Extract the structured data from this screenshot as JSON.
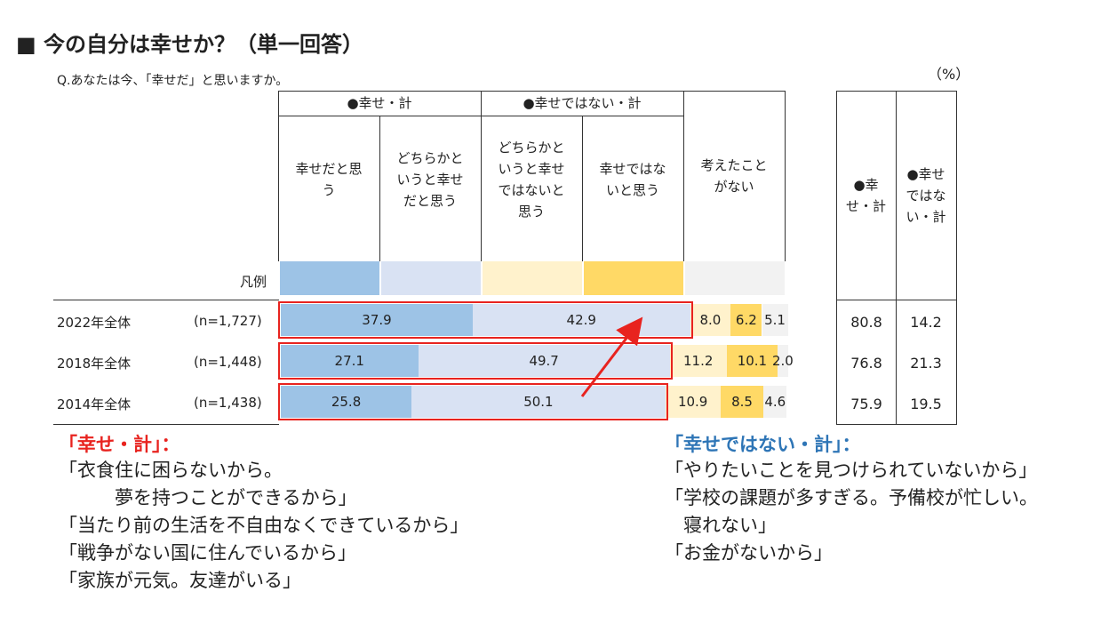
{
  "title": "■ 今の自分は幸せか？（単一回答）",
  "question": "Q.あなたは今、「幸せだ」と思いますか。",
  "unit": "（%）",
  "group_headers": [
    "●幸せ・計",
    "●幸せではない・計"
  ],
  "column_headers": [
    "幸せだと思\nう",
    "どちらかと\nいうと幸せ\nだと思う",
    "どちらかと\nいうと幸せ\nではないと\n思う",
    "幸せではな\nいと思う",
    "考えたこと\nがない"
  ],
  "total_headers": [
    "●幸\nせ・計",
    "●幸せ\nではな\nい・計"
  ],
  "legend_label": "凡例",
  "colors": {
    "c1": "#9dc3e6",
    "c2": "#d9e2f3",
    "c3": "#fff2cc",
    "c4": "#ffd966",
    "c5": "#f2f2f2",
    "highlight": "#e8231f",
    "happy_note": "#e8231f",
    "unhappy_note": "#2e75b6"
  },
  "chart_data": {
    "type": "bar",
    "stacked": true,
    "orientation": "horizontal",
    "unit": "%",
    "categories": [
      "2022年全体",
      "2018年全体",
      "2014年全体"
    ],
    "sample_sizes": [
      "(n=1,727)",
      "(n=1,448)",
      "(n=1,438)"
    ],
    "series": [
      {
        "name": "幸せだと思う",
        "values": [
          37.9,
          27.1,
          25.8
        ]
      },
      {
        "name": "どちらかというと幸せだと思う",
        "values": [
          42.9,
          49.7,
          50.1
        ]
      },
      {
        "name": "どちらかというと幸せではないと思う",
        "values": [
          8.0,
          11.2,
          10.9
        ]
      },
      {
        "name": "幸せではないと思う",
        "values": [
          6.2,
          10.1,
          8.5
        ]
      },
      {
        "name": "考えたことがない",
        "values": [
          5.1,
          2.0,
          4.6
        ]
      }
    ],
    "data_labels": [
      [
        "37.9",
        "42.9",
        "8.0",
        "6.2",
        "5.1"
      ],
      [
        "27.1",
        "49.7",
        "11.2",
        "10.1",
        "2.0"
      ],
      [
        "25.8",
        "50.1",
        "10.9",
        "8.5",
        "4.6"
      ]
    ],
    "totals": {
      "幸せ・計": [
        "80.8",
        "76.8",
        "75.9"
      ],
      "幸せではない・計": [
        "14.2",
        "21.3",
        "19.5"
      ]
    }
  },
  "notes": {
    "happy": {
      "heading": "「幸せ・計」：",
      "lines": [
        "「衣食住に困らないから。",
        "　　　夢を持つことができるから」",
        "「当たり前の生活を不自由なくできているから」",
        "「戦争がない国に住んでいるから」",
        "「家族が元気。友達がいる」"
      ]
    },
    "unhappy": {
      "heading": "「幸せではない・計」：",
      "lines": [
        "「やりたいことを見つけられていないから」",
        "「学校の課題が多すぎる。予備校が忙しい。",
        "　寝れない」",
        "「お金がないから」"
      ]
    }
  }
}
